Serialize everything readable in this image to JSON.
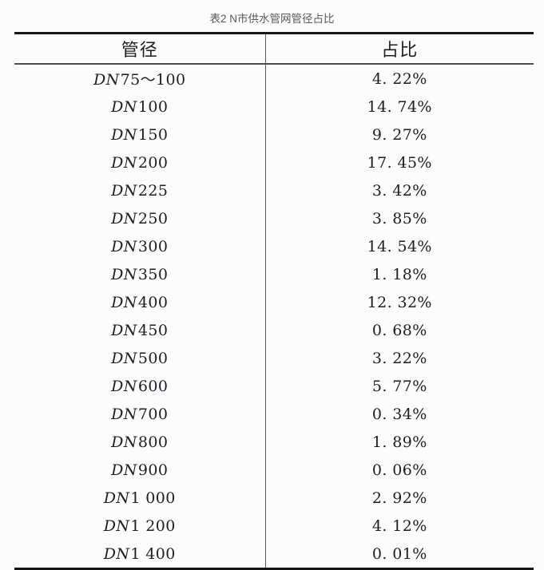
{
  "caption": "表2 N市供水管网管径占比",
  "table": {
    "headers": {
      "diameter": "管径",
      "share": "占比"
    },
    "rows": [
      {
        "prefix": "DN",
        "size": "75～100",
        "share": "4. 22%"
      },
      {
        "prefix": "DN",
        "size": "100",
        "share": "14. 74%"
      },
      {
        "prefix": "DN",
        "size": "150",
        "share": "9. 27%"
      },
      {
        "prefix": "DN",
        "size": "200",
        "share": "17. 45%"
      },
      {
        "prefix": "DN",
        "size": "225",
        "share": "3. 42%"
      },
      {
        "prefix": "DN",
        "size": "250",
        "share": "3. 85%"
      },
      {
        "prefix": "DN",
        "size": "300",
        "share": "14. 54%"
      },
      {
        "prefix": "DN",
        "size": "350",
        "share": "1. 18%"
      },
      {
        "prefix": "DN",
        "size": "400",
        "share": "12. 32%"
      },
      {
        "prefix": "DN",
        "size": "450",
        "share": "0. 68%"
      },
      {
        "prefix": "DN",
        "size": "500",
        "share": "3. 22%"
      },
      {
        "prefix": "DN",
        "size": "600",
        "share": "5. 77%"
      },
      {
        "prefix": "DN",
        "size": "700",
        "share": "0. 34%"
      },
      {
        "prefix": "DN",
        "size": "800",
        "share": "1. 89%"
      },
      {
        "prefix": "DN",
        "size": "900",
        "share": "0. 06%"
      },
      {
        "prefix": "DN",
        "size": "1 000",
        "share": "2. 92%"
      },
      {
        "prefix": "DN",
        "size": "1 200",
        "share": "4. 12%"
      },
      {
        "prefix": "DN",
        "size": "1 400",
        "share": "0. 01%"
      }
    ]
  },
  "colors": {
    "background": "#fcfcfc",
    "rule_heavy": "#161616",
    "rule_light": "#4d4d4d",
    "divider": "#5a5a5a",
    "text": "#1d1d26",
    "caption_text": "#595959"
  }
}
